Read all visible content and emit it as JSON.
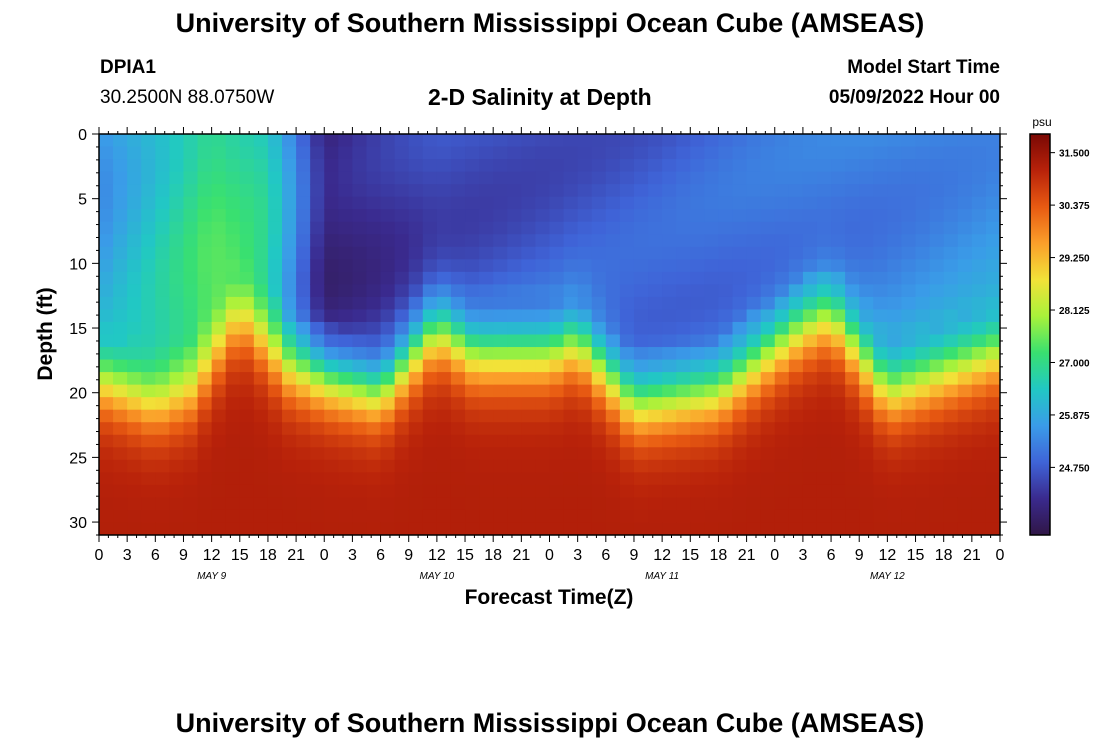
{
  "header": {
    "main_title": "University of Southern Mississippi Ocean Cube (AMSEAS)",
    "station_id": "DPIA1",
    "coordinates": "30.2500N  88.0750W",
    "chart_title": "2-D Salinity at Depth",
    "model_start_label": "Model Start Time",
    "model_start_value": "05/09/2022 Hour 00"
  },
  "footer": {
    "repeated_title": "University of Southern Mississippi Ocean Cube (AMSEAS)"
  },
  "chart_data": {
    "type": "heatmap",
    "title": "2-D Salinity at Depth",
    "xlabel": "Forecast Time(Z)",
    "ylabel": "Depth (ft)",
    "x_range_hours": [
      0,
      96
    ],
    "y_range_ft": [
      0,
      31
    ],
    "x_tick_labels": [
      "0",
      "3",
      "6",
      "9",
      "12",
      "15",
      "18",
      "21",
      "0",
      "3",
      "6",
      "9",
      "12",
      "15",
      "18",
      "21",
      "0",
      "3",
      "6",
      "9",
      "12",
      "15",
      "18",
      "21",
      "0",
      "3",
      "6",
      "9",
      "12",
      "15",
      "18",
      "21",
      "0"
    ],
    "y_ticks": [
      0,
      5,
      10,
      15,
      20,
      25,
      30
    ],
    "day_labels": [
      {
        "label": "MAY 9",
        "hour": 12
      },
      {
        "label": "MAY 10",
        "hour": 36
      },
      {
        "label": "MAY 11",
        "hour": 60
      },
      {
        "label": "MAY 12",
        "hour": 84
      }
    ],
    "colorbar": {
      "unit": "psu",
      "min": 23.3,
      "max": 31.9,
      "ticks": [
        "31.500",
        "30.375",
        "29.250",
        "28.125",
        "27.000",
        "25.875",
        "24.750"
      ],
      "tick_values": [
        31.5,
        30.375,
        29.25,
        28.125,
        27.0,
        25.875,
        24.75
      ],
      "colors": [
        "#301646",
        "#3a2a8e",
        "#3f64d8",
        "#3a9ce8",
        "#21c8c4",
        "#39e070",
        "#a8f23a",
        "#f2e238",
        "#fb9f2a",
        "#e85a12",
        "#b8220a",
        "#7a0804"
      ]
    },
    "halocline_depth_ft_by_hour": [
      {
        "hour": 0,
        "depth": 19
      },
      {
        "hour": 6,
        "depth": 21
      },
      {
        "hour": 10,
        "depth": 20
      },
      {
        "hour": 15,
        "depth": 14
      },
      {
        "hour": 20,
        "depth": 18
      },
      {
        "hour": 30,
        "depth": 20
      },
      {
        "hour": 36,
        "depth": 15
      },
      {
        "hour": 40,
        "depth": 17
      },
      {
        "hour": 48,
        "depth": 17
      },
      {
        "hour": 51,
        "depth": 16
      },
      {
        "hour": 57,
        "depth": 21
      },
      {
        "hour": 66,
        "depth": 20
      },
      {
        "hour": 75,
        "depth": 15
      },
      {
        "hour": 78,
        "depth": 14
      },
      {
        "hour": 84,
        "depth": 20
      },
      {
        "hour": 96,
        "depth": 17
      }
    ],
    "surface_salinity_psu_by_hour": [
      {
        "hour": 0,
        "value": 25.6
      },
      {
        "hour": 12,
        "value": 27.2
      },
      {
        "hour": 18,
        "value": 26.6
      },
      {
        "hour": 24,
        "value": 23.8
      },
      {
        "hour": 36,
        "value": 24.5
      },
      {
        "hour": 60,
        "value": 24.8
      },
      {
        "hour": 96,
        "value": 25.5
      }
    ],
    "bottom_salinity_psu": 31.2
  }
}
